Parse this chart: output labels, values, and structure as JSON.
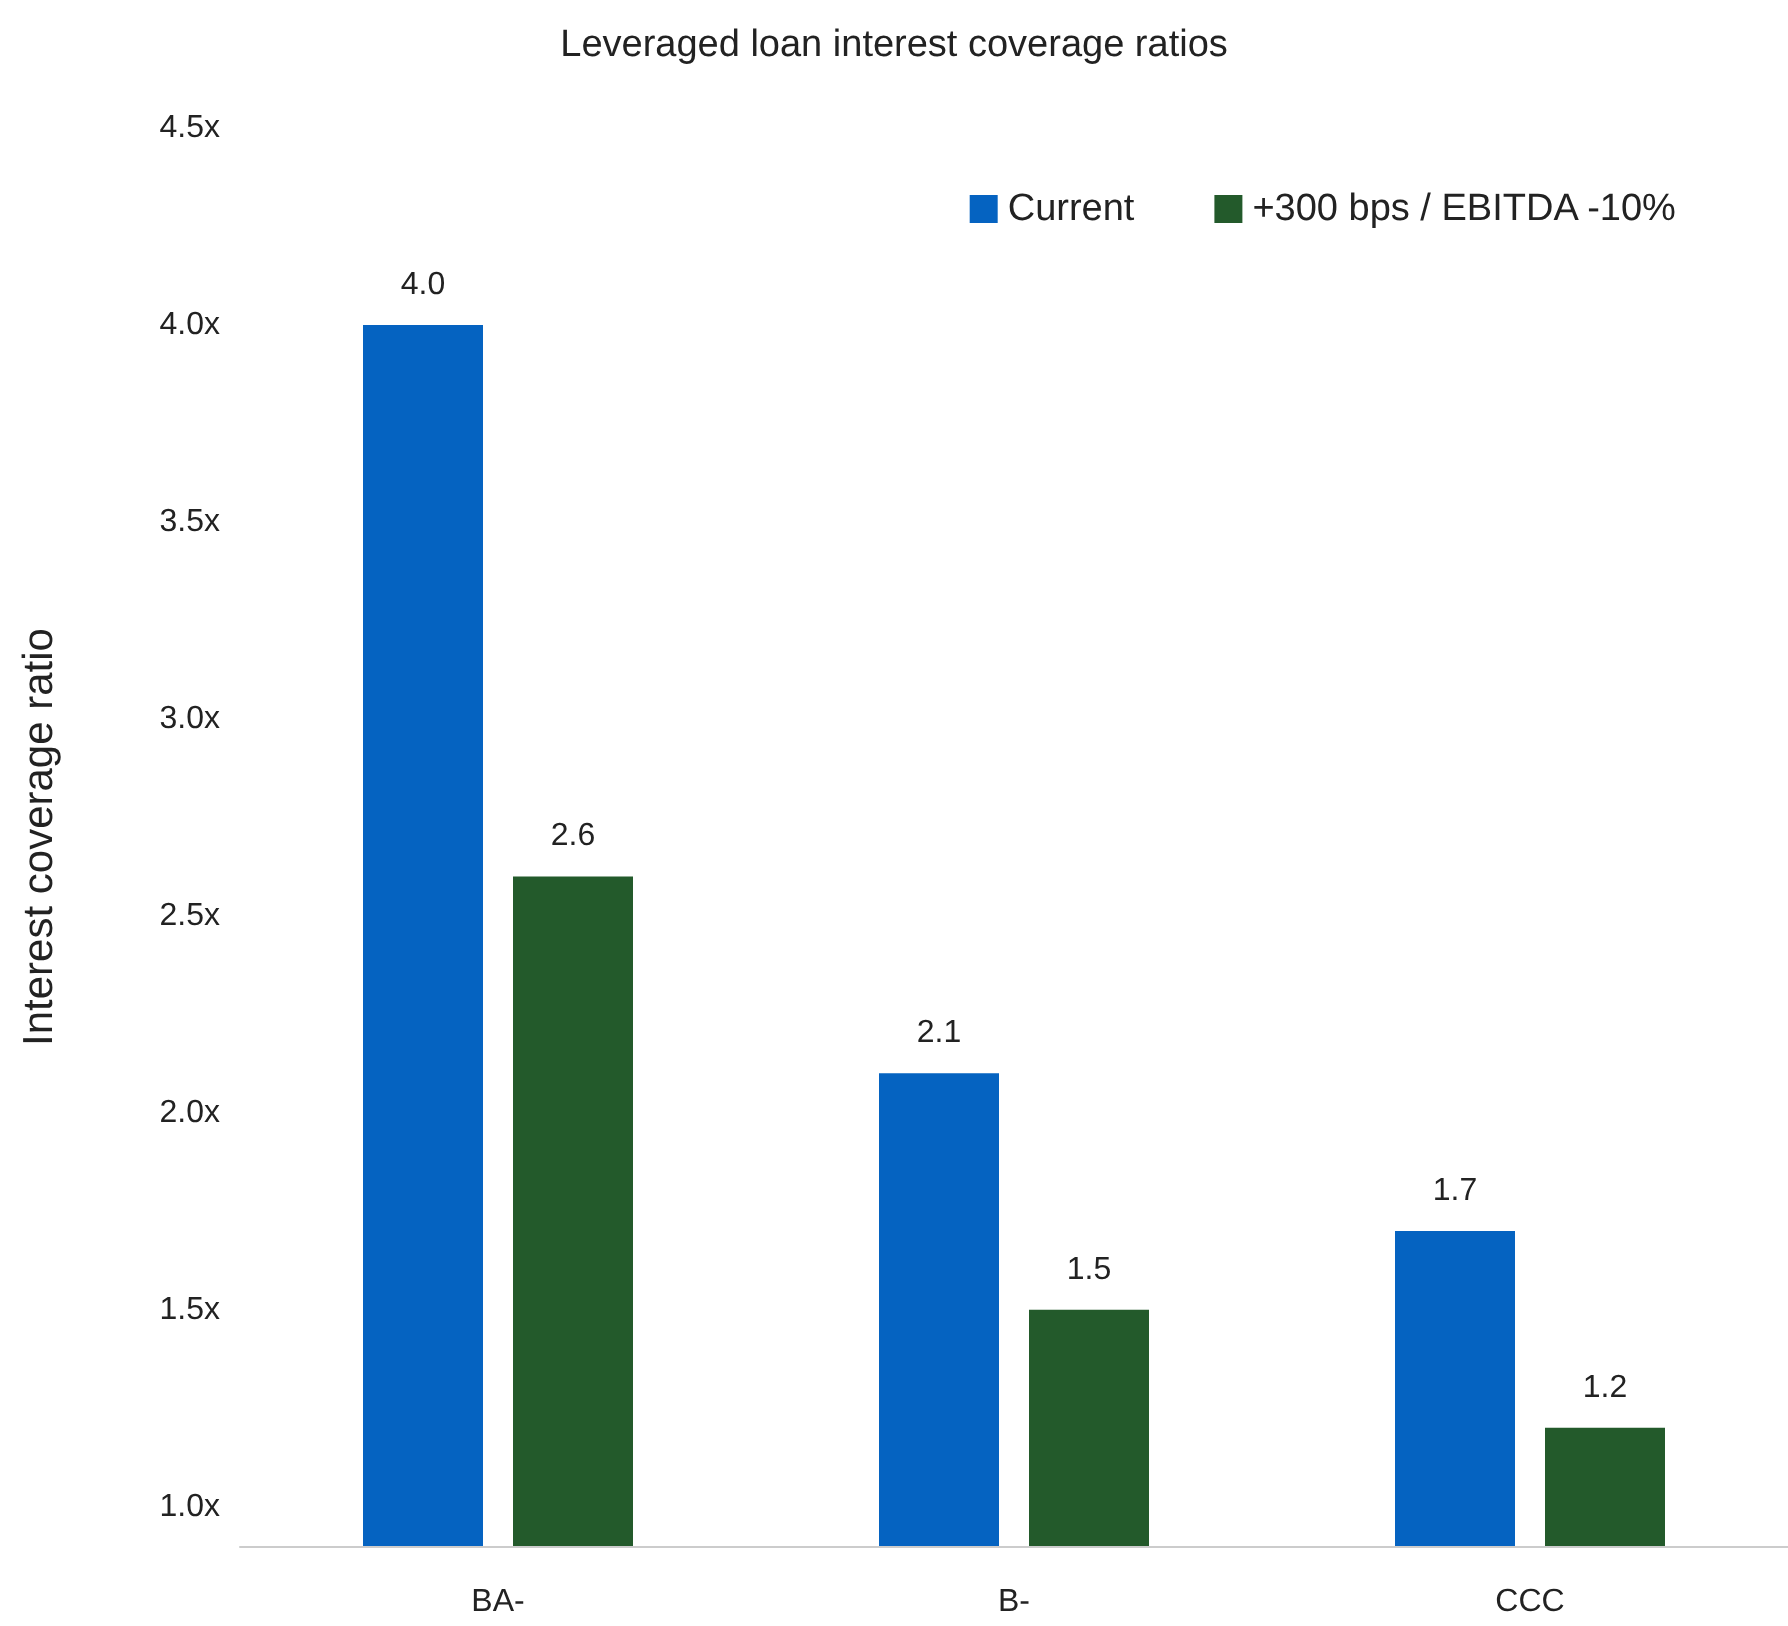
{
  "chart_data": {
    "type": "bar",
    "title": "Leveraged loan interest coverage ratios",
    "ylabel": "Interest coverage ratio",
    "categories": [
      "BA-",
      "B-",
      "CCC"
    ],
    "series": [
      {
        "name": "Current",
        "color": "#0563c1",
        "values": [
          4.0,
          2.1,
          1.7
        ],
        "value_labels": [
          "4.0",
          "2.1",
          "1.7"
        ]
      },
      {
        "name": "+300 bps / EBITDA -10%",
        "color": "#235a2b",
        "values": [
          2.6,
          1.5,
          1.2
        ],
        "value_labels": [
          "2.6",
          "1.5",
          "1.2"
        ]
      }
    ],
    "ylim": [
      0.9,
      4.5
    ],
    "yticks": [
      {
        "value": 1.0,
        "label": "1.0x"
      },
      {
        "value": 1.5,
        "label": "1.5x"
      },
      {
        "value": 2.0,
        "label": "2.0x"
      },
      {
        "value": 2.5,
        "label": "2.5x"
      },
      {
        "value": 3.0,
        "label": "3.0x"
      },
      {
        "value": 3.5,
        "label": "3.5x"
      },
      {
        "value": 4.0,
        "label": "4.0x"
      },
      {
        "value": 4.5,
        "label": "4.5x"
      }
    ],
    "grid": false,
    "legend": "top right"
  }
}
